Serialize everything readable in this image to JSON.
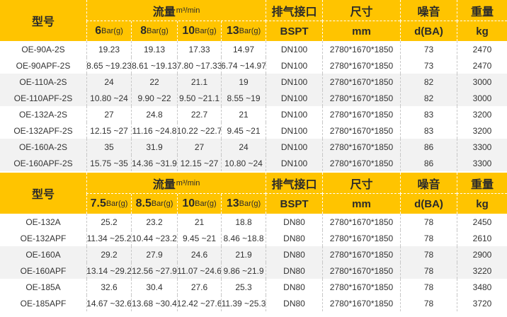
{
  "tables": [
    {
      "header": {
        "model": "型号",
        "flow": {
          "label": "流量",
          "unit": "m³/min"
        },
        "pressures": [
          {
            "value": "6",
            "unit": "Bar(g)"
          },
          {
            "value": "8",
            "unit": "Bar(g)"
          },
          {
            "value": "10",
            "unit": "Bar(g)"
          },
          {
            "value": "13",
            "unit": "Bar(g)"
          }
        ],
        "columns": [
          {
            "name": "排气接口",
            "unit": "BSPT"
          },
          {
            "name": "尺寸",
            "unit": "mm"
          },
          {
            "name": "噪音",
            "unit": "d(BA)"
          },
          {
            "name": "重量",
            "unit": "kg"
          }
        ]
      },
      "rows": [
        [
          "OE-90A-2S",
          "19.23",
          "19.13",
          "17.33",
          "14.97",
          "DN100",
          "2780*1670*1850",
          "73",
          "2470"
        ],
        [
          "OE-90APF-2S",
          "8.65 ~19.23",
          "8.61 ~19.13",
          "7.80 ~17.33",
          "6.74 ~14.97",
          "DN100",
          "2780*1670*1850",
          "73",
          "2470"
        ],
        [
          "OE-110A-2S",
          "24",
          "22",
          "21.1",
          "19",
          "DN100",
          "2780*1670*1850",
          "82",
          "3000"
        ],
        [
          "OE-110APF-2S",
          "10.80 ~24",
          "9.90 ~22",
          "9.50 ~21.1",
          "8.55 ~19",
          "DN100",
          "2780*1670*1850",
          "82",
          "3000"
        ],
        [
          "OE-132A-2S",
          "27",
          "24.8",
          "22.7",
          "21",
          "DN100",
          "2780*1670*1850",
          "83",
          "3200"
        ],
        [
          "OE-132APF-2S",
          "12.15 ~27",
          "11.16 ~24.8",
          "10.22 ~22.7",
          "9.45 ~21",
          "DN100",
          "2780*1670*1850",
          "83",
          "3200"
        ],
        [
          "OE-160A-2S",
          "35",
          "31.9",
          "27",
          "24",
          "DN100",
          "2780*1670*1850",
          "86",
          "3300"
        ],
        [
          "OE-160APF-2S",
          "15.75 ~35",
          "14.36 ~31.9",
          "12.15 ~27",
          "10.80 ~24",
          "DN100",
          "2780*1670*1850",
          "86",
          "3300"
        ]
      ]
    },
    {
      "header": {
        "model": "型号",
        "flow": {
          "label": "流量",
          "unit": "m³/min"
        },
        "pressures": [
          {
            "value": "7.5",
            "unit": "Bar(g)"
          },
          {
            "value": "8.5",
            "unit": "Bar(g)"
          },
          {
            "value": "10",
            "unit": "Bar(g)"
          },
          {
            "value": "13",
            "unit": "Bar(g)"
          }
        ],
        "columns": [
          {
            "name": "排气接口",
            "unit": "BSPT"
          },
          {
            "name": "尺寸",
            "unit": "mm"
          },
          {
            "name": "噪音",
            "unit": "d(BA)"
          },
          {
            "name": "重量",
            "unit": "kg"
          }
        ]
      },
      "rows": [
        [
          "OE-132A",
          "25.2",
          "23.2",
          "21",
          "18.8",
          "DN80",
          "2780*1670*1850",
          "78",
          "2450"
        ],
        [
          "OE-132APF",
          "11.34 ~25.2",
          "10.44 ~23.2",
          "9.45 ~21",
          "8.46 ~18.8",
          "DN80",
          "2780*1670*1850",
          "78",
          "2610"
        ],
        [
          "OE-160A",
          "29.2",
          "27.9",
          "24.6",
          "21.9",
          "DN80",
          "2780*1670*1850",
          "78",
          "2900"
        ],
        [
          "OE-160APF",
          "13.14 ~29.2",
          "12.56 ~27.9",
          "11.07 ~24.6",
          "9.86 ~21.9",
          "DN80",
          "2780*1670*1850",
          "78",
          "3220"
        ],
        [
          "OE-185A",
          "32.6",
          "30.4",
          "27.6",
          "25.3",
          "DN80",
          "2780*1670*1850",
          "78",
          "3480"
        ],
        [
          "OE-185APF",
          "14.67 ~32.6",
          "13.68 ~30.4",
          "12.42 ~27.6",
          "11.39 ~25.3",
          "DN80",
          "2780*1670*1850",
          "78",
          "3720"
        ]
      ]
    }
  ]
}
